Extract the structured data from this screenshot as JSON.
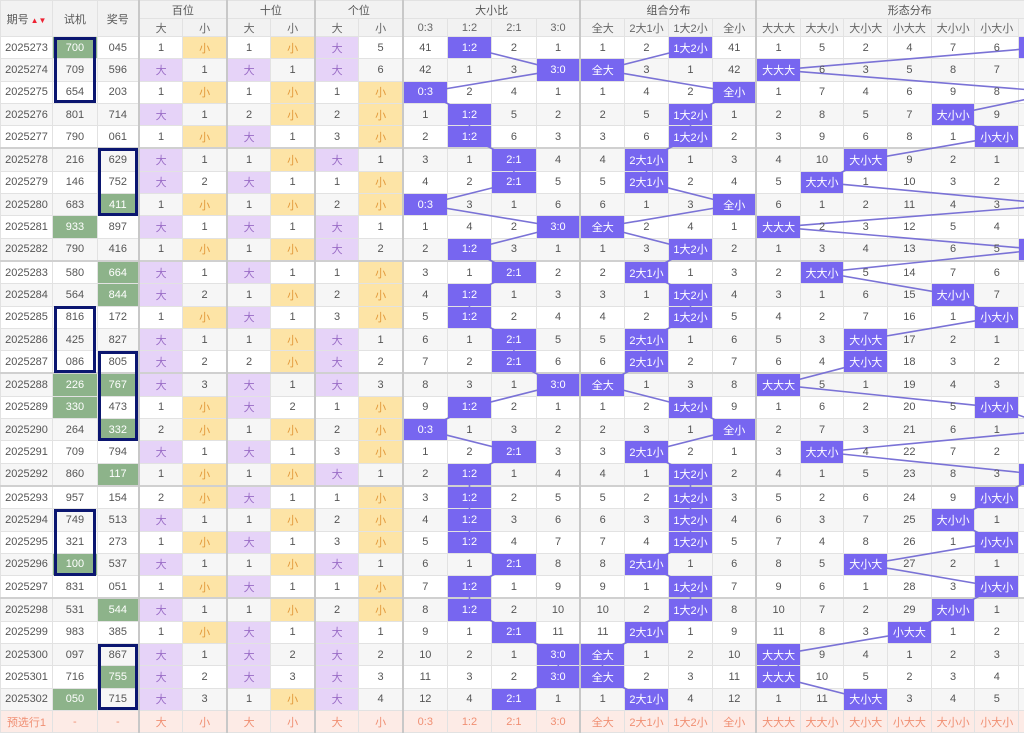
{
  "header": {
    "period": "期号",
    "sort_icon": "sort-up-down-icon",
    "test": "试机",
    "number": "奖号",
    "groups": [
      "百位",
      "十位",
      "个位",
      "大小比",
      "组合分布",
      "形态分布"
    ],
    "sub": [
      "大",
      "小",
      "大",
      "小",
      "大",
      "小",
      "0:3",
      "1:2",
      "2:1",
      "3:0",
      "全大",
      "2大1小",
      "1大2小",
      "全小",
      "大大大",
      "大大小",
      "大小大",
      "小大大",
      "大小小",
      "小大小",
      "小小大"
    ]
  },
  "colors": {
    "shape_hit": "#7766f0",
    "big_hit": "#e6d3f8",
    "small_hit": "#fde4a6",
    "pair_highlight": "#8db38a",
    "box": "#0b1670",
    "preselect_row": "#fdebe6"
  },
  "rows": [
    [
      "2025273",
      "700",
      "045",
      "1",
      "小",
      "1",
      "小",
      "大",
      "5",
      "41",
      "1:2",
      "2",
      "1",
      "1",
      "2",
      "1大2小",
      "41",
      "1",
      "5",
      "2",
      "4",
      "7",
      "6",
      "小小大"
    ],
    [
      "2025274",
      "709",
      "596",
      "大",
      "1",
      "大",
      "1",
      "大",
      "6",
      "42",
      "1",
      "3",
      "3:0",
      "全大",
      "3",
      "1",
      "42",
      "大大大",
      "6",
      "3",
      "5",
      "8",
      "7",
      "1"
    ],
    [
      "2025275",
      "654",
      "203",
      "1",
      "小",
      "1",
      "小",
      "1",
      "小",
      "0:3",
      "2",
      "4",
      "1",
      "1",
      "4",
      "2",
      "全小",
      "1",
      "7",
      "4",
      "6",
      "9",
      "8",
      "2"
    ],
    [
      "2025276",
      "801",
      "714",
      "大",
      "1",
      "2",
      "小",
      "2",
      "小",
      "1",
      "1:2",
      "5",
      "2",
      "2",
      "5",
      "1大2小",
      "1",
      "2",
      "8",
      "5",
      "7",
      "大小小",
      "9",
      "3"
    ],
    [
      "2025277",
      "790",
      "061",
      "1",
      "小",
      "大",
      "1",
      "3",
      "小",
      "2",
      "1:2",
      "6",
      "3",
      "3",
      "6",
      "1大2小",
      "2",
      "3",
      "9",
      "6",
      "8",
      "1",
      "小大小",
      "4"
    ],
    [
      "2025278",
      "216",
      "629",
      "大",
      "1",
      "1",
      "小",
      "大",
      "1",
      "3",
      "1",
      "2:1",
      "4",
      "4",
      "2大1小",
      "1",
      "3",
      "4",
      "10",
      "大小大",
      "9",
      "2",
      "1",
      "5"
    ],
    [
      "2025279",
      "146",
      "752",
      "大",
      "2",
      "大",
      "1",
      "1",
      "小",
      "4",
      "2",
      "2:1",
      "5",
      "5",
      "2大1小",
      "2",
      "4",
      "5",
      "大大小",
      "1",
      "10",
      "3",
      "2",
      "6"
    ],
    [
      "2025280",
      "683",
      "411",
      "1",
      "小",
      "1",
      "小",
      "2",
      "小",
      "0:3",
      "3",
      "1",
      "6",
      "6",
      "1",
      "3",
      "全小",
      "6",
      "1",
      "2",
      "11",
      "4",
      "3",
      "7"
    ],
    [
      "2025281",
      "933",
      "897",
      "大",
      "1",
      "大",
      "1",
      "大",
      "1",
      "1",
      "4",
      "2",
      "3:0",
      "全大",
      "2",
      "4",
      "1",
      "大大大",
      "2",
      "3",
      "12",
      "5",
      "4",
      "8"
    ],
    [
      "2025282",
      "790",
      "416",
      "1",
      "小",
      "1",
      "小",
      "大",
      "2",
      "2",
      "1:2",
      "3",
      "1",
      "1",
      "3",
      "1大2小",
      "2",
      "1",
      "3",
      "4",
      "13",
      "6",
      "5",
      "小小大"
    ],
    [
      "2025283",
      "580",
      "664",
      "大",
      "1",
      "大",
      "1",
      "1",
      "小",
      "3",
      "1",
      "2:1",
      "2",
      "2",
      "2大1小",
      "1",
      "3",
      "2",
      "大大小",
      "5",
      "14",
      "7",
      "6",
      "1"
    ],
    [
      "2025284",
      "564",
      "844",
      "大",
      "2",
      "1",
      "小",
      "2",
      "小",
      "4",
      "1:2",
      "1",
      "3",
      "3",
      "1",
      "1大2小",
      "4",
      "3",
      "1",
      "6",
      "15",
      "大小小",
      "7",
      "2"
    ],
    [
      "2025285",
      "816",
      "172",
      "1",
      "小",
      "大",
      "1",
      "3",
      "小",
      "5",
      "1:2",
      "2",
      "4",
      "4",
      "2",
      "1大2小",
      "5",
      "4",
      "2",
      "7",
      "16",
      "1",
      "小大小",
      "3"
    ],
    [
      "2025286",
      "425",
      "827",
      "大",
      "1",
      "1",
      "小",
      "大",
      "1",
      "6",
      "1",
      "2:1",
      "5",
      "5",
      "2大1小",
      "1",
      "6",
      "5",
      "3",
      "大小大",
      "17",
      "2",
      "1",
      "4"
    ],
    [
      "2025287",
      "086",
      "805",
      "大",
      "2",
      "2",
      "小",
      "大",
      "2",
      "7",
      "2",
      "2:1",
      "6",
      "6",
      "2大1小",
      "2",
      "7",
      "6",
      "4",
      "大小大",
      "18",
      "3",
      "2",
      "5"
    ],
    [
      "2025288",
      "226",
      "767",
      "大",
      "3",
      "大",
      "1",
      "大",
      "3",
      "8",
      "3",
      "1",
      "3:0",
      "全大",
      "1",
      "3",
      "8",
      "大大大",
      "5",
      "1",
      "19",
      "4",
      "3",
      "6"
    ],
    [
      "2025289",
      "330",
      "473",
      "1",
      "小",
      "大",
      "2",
      "1",
      "小",
      "9",
      "1:2",
      "2",
      "1",
      "1",
      "2",
      "1大2小",
      "9",
      "1",
      "6",
      "2",
      "20",
      "5",
      "小大小",
      "7"
    ],
    [
      "2025290",
      "264",
      "332",
      "2",
      "小",
      "1",
      "小",
      "2",
      "小",
      "0:3",
      "1",
      "3",
      "2",
      "2",
      "3",
      "1",
      "全小",
      "2",
      "7",
      "3",
      "21",
      "6",
      "1",
      "8"
    ],
    [
      "2025291",
      "709",
      "794",
      "大",
      "1",
      "大",
      "1",
      "3",
      "小",
      "1",
      "2",
      "2:1",
      "3",
      "3",
      "2大1小",
      "2",
      "1",
      "3",
      "大大小",
      "4",
      "22",
      "7",
      "2",
      "9"
    ],
    [
      "2025292",
      "860",
      "117",
      "1",
      "小",
      "1",
      "小",
      "大",
      "1",
      "2",
      "1:2",
      "1",
      "4",
      "4",
      "1",
      "1大2小",
      "2",
      "4",
      "1",
      "5",
      "23",
      "8",
      "3",
      "小小大"
    ],
    [
      "2025293",
      "957",
      "154",
      "2",
      "小",
      "大",
      "1",
      "1",
      "小",
      "3",
      "1:2",
      "2",
      "5",
      "5",
      "2",
      "1大2小",
      "3",
      "5",
      "2",
      "6",
      "24",
      "9",
      "小大小",
      "1"
    ],
    [
      "2025294",
      "749",
      "513",
      "大",
      "1",
      "1",
      "小",
      "2",
      "小",
      "4",
      "1:2",
      "3",
      "6",
      "6",
      "3",
      "1大2小",
      "4",
      "6",
      "3",
      "7",
      "25",
      "大小小",
      "1",
      "2"
    ],
    [
      "2025295",
      "321",
      "273",
      "1",
      "小",
      "大",
      "1",
      "3",
      "小",
      "5",
      "1:2",
      "4",
      "7",
      "7",
      "4",
      "1大2小",
      "5",
      "7",
      "4",
      "8",
      "26",
      "1",
      "小大小",
      "3"
    ],
    [
      "2025296",
      "100",
      "537",
      "大",
      "1",
      "1",
      "小",
      "大",
      "1",
      "6",
      "1",
      "2:1",
      "8",
      "8",
      "2大1小",
      "1",
      "6",
      "8",
      "5",
      "大小大",
      "27",
      "2",
      "1",
      "4"
    ],
    [
      "2025297",
      "831",
      "051",
      "1",
      "小",
      "大",
      "1",
      "1",
      "小",
      "7",
      "1:2",
      "1",
      "9",
      "9",
      "1",
      "1大2小",
      "7",
      "9",
      "6",
      "1",
      "28",
      "3",
      "小大小",
      "5"
    ],
    [
      "2025298",
      "531",
      "544",
      "大",
      "1",
      "1",
      "小",
      "2",
      "小",
      "8",
      "1:2",
      "2",
      "10",
      "10",
      "2",
      "1大2小",
      "8",
      "10",
      "7",
      "2",
      "29",
      "大小小",
      "1",
      "6"
    ],
    [
      "2025299",
      "983",
      "385",
      "1",
      "小",
      "大",
      "1",
      "大",
      "1",
      "9",
      "1",
      "2:1",
      "11",
      "11",
      "2大1小",
      "1",
      "9",
      "11",
      "8",
      "3",
      "小大大",
      "1",
      "2",
      "7"
    ],
    [
      "2025300",
      "097",
      "867",
      "大",
      "1",
      "大",
      "2",
      "大",
      "2",
      "10",
      "2",
      "1",
      "3:0",
      "全大",
      "1",
      "2",
      "10",
      "大大大",
      "9",
      "4",
      "1",
      "2",
      "3",
      "8"
    ],
    [
      "2025301",
      "716",
      "755",
      "大",
      "2",
      "大",
      "3",
      "大",
      "3",
      "11",
      "3",
      "2",
      "3:0",
      "全大",
      "2",
      "3",
      "11",
      "大大大",
      "10",
      "5",
      "2",
      "3",
      "4",
      "9"
    ],
    [
      "2025302",
      "050",
      "715",
      "大",
      "3",
      "1",
      "小",
      "大",
      "4",
      "12",
      "4",
      "2:1",
      "1",
      "1",
      "2大1小",
      "4",
      "12",
      "1",
      "11",
      "大小大",
      "3",
      "4",
      "5",
      "10"
    ]
  ],
  "footer": [
    "预选行1",
    "-",
    "-",
    "大",
    "小",
    "大",
    "小",
    "大",
    "小",
    "0:3",
    "1:2",
    "2:1",
    "3:0",
    "全大",
    "2大1小",
    "1大2小",
    "全小",
    "大大大",
    "大大小",
    "大小大",
    "小大大",
    "大小小",
    "小大小",
    "小小大"
  ],
  "boxes": [
    {
      "column": "试机",
      "from": "2025273",
      "to": "2025275"
    },
    {
      "column": "试机",
      "from": "2025285",
      "to": "2025287"
    },
    {
      "column": "试机",
      "from": "2025294",
      "to": "2025296"
    },
    {
      "column": "奖号",
      "from": "2025278",
      "to": "2025280"
    },
    {
      "column": "奖号",
      "from": "2025287",
      "to": "2025290"
    },
    {
      "column": "奖号",
      "from": "2025300",
      "to": "2025302"
    }
  ]
}
